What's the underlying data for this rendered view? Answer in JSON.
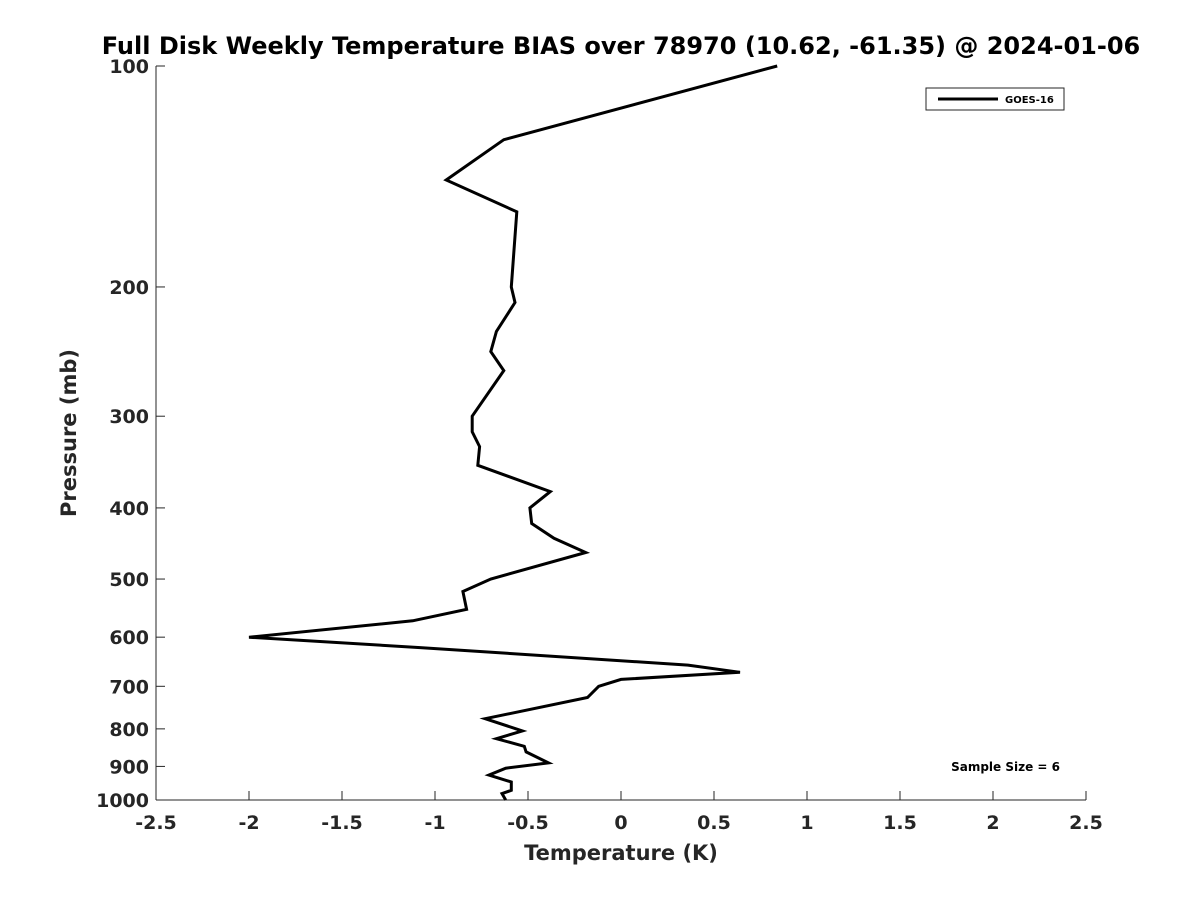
{
  "chart_data": {
    "type": "line",
    "title": "Full Disk Weekly Temperature BIAS over 78970 (10.62, -61.35) @ 2024-01-06",
    "xlabel": "Temperature (K)",
    "ylabel": "Pressure (mb)",
    "xlim": [
      -2.5,
      2.5
    ],
    "ylim": [
      100,
      1000
    ],
    "y_scale": "log",
    "y_reversed": true,
    "xticks": [
      -2.5,
      -2,
      -1.5,
      -1,
      -0.5,
      0,
      0.5,
      1,
      1.5,
      2,
      2.5
    ],
    "xtick_labels": [
      "-2.5",
      "-2",
      "-1.5",
      "-1",
      "-0.5",
      "0",
      "0.5",
      "1",
      "1.5",
      "2",
      "2.5"
    ],
    "yticks": [
      100,
      200,
      300,
      400,
      500,
      600,
      700,
      800,
      900,
      1000
    ],
    "ytick_labels": [
      "100",
      "200",
      "300",
      "400",
      "500",
      "600",
      "700",
      "800",
      "900",
      "1000"
    ],
    "grid": false,
    "legend_position": "top-right",
    "annotation": "Sample Size = 6",
    "series": [
      {
        "name": "GOES-16",
        "color": "#000000",
        "x": [
          0.84,
          -0.63,
          -0.94,
          -0.56,
          -0.59,
          -0.57,
          -0.67,
          -0.7,
          -0.63,
          -0.8,
          -0.8,
          -0.76,
          -0.77,
          -0.38,
          -0.49,
          -0.48,
          -0.36,
          -0.19,
          -0.7,
          -0.85,
          -0.83,
          -1.12,
          -2.0,
          -1.08,
          0.36,
          0.64,
          0.0,
          -0.12,
          -0.18,
          -0.73,
          -0.53,
          -0.67,
          -0.52,
          -0.51,
          -0.39,
          -0.62,
          -0.71,
          -0.59,
          -0.59,
          -0.64,
          -0.62
        ],
        "y": [
          100,
          126,
          143,
          158,
          200,
          210,
          230,
          245,
          260,
          300,
          315,
          330,
          350,
          380,
          400,
          420,
          440,
          460,
          500,
          520,
          550,
          570,
          600,
          620,
          655,
          670,
          685,
          700,
          725,
          775,
          805,
          825,
          845,
          860,
          890,
          905,
          925,
          945,
          970,
          980,
          1000
        ]
      }
    ]
  }
}
